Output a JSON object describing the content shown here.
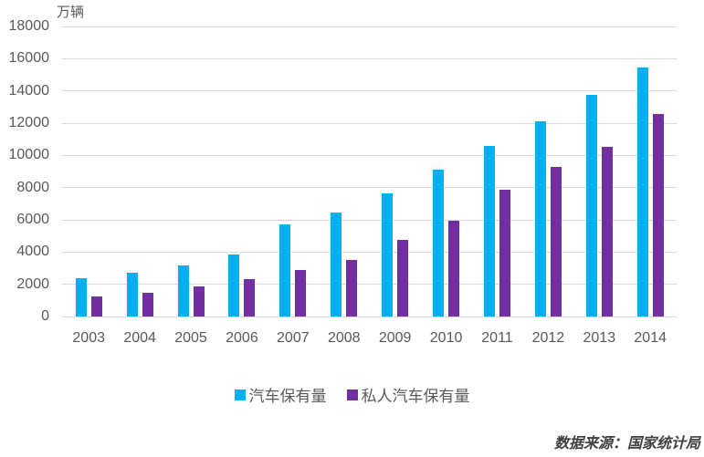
{
  "chart_data": {
    "type": "bar",
    "title": "",
    "unit_label": "万辆",
    "xlabel": "",
    "ylabel": "万辆",
    "categories": [
      "2003",
      "2004",
      "2005",
      "2006",
      "2007",
      "2008",
      "2009",
      "2010",
      "2011",
      "2012",
      "2013",
      "2014"
    ],
    "series": [
      {
        "name": "汽车保有量",
        "color": "#00B0F0",
        "values": [
          2383,
          2694,
          3160,
          3860,
          5697,
          6467,
          7619,
          9086,
          10578,
          12089,
          13741,
          15447
        ]
      },
      {
        "name": "私人汽车保有量",
        "color": "#7030A0",
        "values": [
          1219,
          1482,
          1848,
          2333,
          2876,
          3501,
          4763,
          5939,
          7872,
          9309,
          10502,
          12584
        ]
      }
    ],
    "ylim": [
      0,
      18000
    ],
    "ytick_step": 2000,
    "yticks": [
      0,
      2000,
      4000,
      6000,
      8000,
      10000,
      12000,
      14000,
      16000,
      18000
    ],
    "grid": true,
    "legend_position": "bottom"
  },
  "source_note": "数据来源：国家统计局",
  "colors": {
    "series_1": "#00B0F0",
    "series_2": "#7030A0",
    "gridline": "#D9D9D9",
    "axis_text": "#595959",
    "source_text": "#404040",
    "background": "#FFFFFF"
  }
}
